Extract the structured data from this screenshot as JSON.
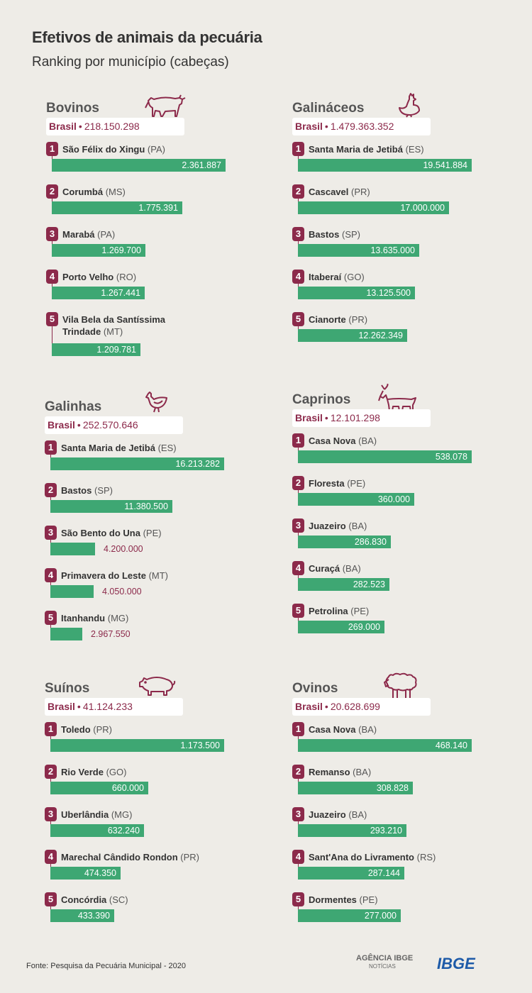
{
  "title": "Efetivos de animais da pecuária",
  "subtitle": "Ranking por município (cabeças)",
  "source": "Fonte: Pesquisa da Pecuária Municipal - 2020",
  "logos": {
    "agencia": "AGÊNCIA IBGE",
    "agencia_sub": "NOTÍCIAS",
    "ibge": "IBGE"
  },
  "colors": {
    "bar": "#3ea773",
    "accent": "#8c2a4b",
    "background": "#eeece7"
  },
  "chart_data": [
    {
      "type": "bar",
      "title": "Bovinos",
      "icon": "cow-icon",
      "total_label": "Brasil",
      "total_value": "218.150.298",
      "categories": [
        "São Félix do Xingu",
        "Corumbá",
        "Marabá",
        "Porto Velho",
        "Vila Bela da Santíssima Trindade"
      ],
      "states": [
        "(PA)",
        "(MS)",
        "(PA)",
        "(RO)",
        "(MT)"
      ],
      "values": [
        2361887,
        1775391,
        1269700,
        1267441,
        1209781
      ],
      "labels": [
        "2.361.887",
        "1.775.391",
        "1.269.700",
        "1.267.441",
        "1.209.781"
      ]
    },
    {
      "type": "bar",
      "title": "Galináceos",
      "icon": "rooster-icon",
      "total_label": "Brasil",
      "total_value": "1.479.363.352",
      "categories": [
        "Santa Maria de Jetibá",
        "Cascavel",
        "Bastos",
        "Itaberaí",
        "Cianorte"
      ],
      "states": [
        "(ES)",
        "(PR)",
        "(SP)",
        "(GO)",
        "(PR)"
      ],
      "values": [
        19541884,
        17000000,
        13635000,
        13125500,
        12262349
      ],
      "labels": [
        "19.541.884",
        "17.000.000",
        "13.635.000",
        "13.125.500",
        "12.262.349"
      ]
    },
    {
      "type": "bar",
      "title": "Galinhas",
      "icon": "hen-icon",
      "total_label": "Brasil",
      "total_value": "252.570.646",
      "categories": [
        "Santa Maria de Jetibá",
        "Bastos",
        "São Bento do Una",
        "Primavera do Leste",
        "Itanhandu"
      ],
      "states": [
        "(ES)",
        "(SP)",
        "(PE)",
        "(MT)",
        "(MG)"
      ],
      "values": [
        16213282,
        11380500,
        4200000,
        4050000,
        2967550
      ],
      "labels": [
        "16.213.282",
        "11.380.500",
        "4.200.000",
        "4.050.000",
        "2.967.550"
      ]
    },
    {
      "type": "bar",
      "title": "Caprinos",
      "icon": "goat-icon",
      "total_label": "Brasil",
      "total_value": "12.101.298",
      "categories": [
        "Casa Nova",
        "Floresta",
        "Juazeiro",
        "Curaçá",
        "Petrolina"
      ],
      "states": [
        "(BA)",
        "(PE)",
        "(BA)",
        "(BA)",
        "(PE)"
      ],
      "values": [
        538078,
        360000,
        286830,
        282523,
        269000
      ],
      "labels": [
        "538.078",
        "360.000",
        "286.830",
        "282.523",
        "269.000"
      ]
    },
    {
      "type": "bar",
      "title": "Suínos",
      "icon": "pig-icon",
      "total_label": "Brasil",
      "total_value": "41.124.233",
      "categories": [
        "Toledo",
        "Rio Verde",
        "Uberlândia",
        "Marechal Cândido Rondon",
        "Concórdia"
      ],
      "states": [
        "(PR)",
        "(GO)",
        "(MG)",
        "(PR)",
        "(SC)"
      ],
      "values": [
        1173500,
        660000,
        632240,
        474350,
        433390
      ],
      "labels": [
        "1.173.500",
        "660.000",
        "632.240",
        "474.350",
        "433.390"
      ]
    },
    {
      "type": "bar",
      "title": "Ovinos",
      "icon": "sheep-icon",
      "total_label": "Brasil",
      "total_value": "20.628.699",
      "categories": [
        "Casa Nova",
        "Remanso",
        "Juazeiro",
        "Sant'Ana do Livramento",
        "Dormentes"
      ],
      "states": [
        "(BA)",
        "(BA)",
        "(BA)",
        "(RS)",
        "(PE)"
      ],
      "values": [
        468140,
        308828,
        293210,
        287144,
        277000
      ],
      "labels": [
        "468.140",
        "308.828",
        "293.210",
        "287.144",
        "277.000"
      ]
    }
  ]
}
